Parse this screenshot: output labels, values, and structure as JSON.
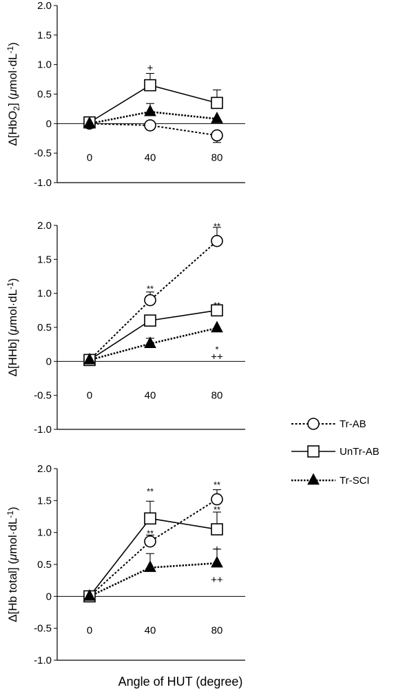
{
  "x_axis_label": "Angle of HUT (degree)",
  "legend": [
    {
      "label": "Tr-AB",
      "marker": "open-circle",
      "line": "dotted"
    },
    {
      "label": "UnTr-AB",
      "marker": "open-square",
      "line": "solid"
    },
    {
      "label": "Tr-SCI",
      "marker": "filled-triangle",
      "line": "dotted"
    }
  ],
  "colors": {
    "ink": "#000000",
    "open_fill": "#ffffff"
  },
  "chart_data": [
    {
      "type": "line",
      "ylabel_pre": "Δ[HbO",
      "ylabel_sub": "2",
      "ylabel_mid": "] (",
      "ylabel_mu": "μ",
      "ylabel_post": "mol·dL",
      "ylabel_sup": "-1",
      "ylabel_end": ")",
      "ylim": [
        -1.0,
        2.0
      ],
      "yticks": [
        "2.0",
        "1.5",
        "1.0",
        "0.5",
        "0",
        "-0.5",
        "-1.0"
      ],
      "x": [
        0,
        40,
        80
      ],
      "xticks": [
        "0",
        "40",
        "80"
      ],
      "series": [
        {
          "name": "Tr-AB",
          "values": [
            0.0,
            -0.03,
            -0.2
          ],
          "err": [
            0.0,
            0.0,
            0.12
          ]
        },
        {
          "name": "UnTr-AB",
          "values": [
            0.02,
            0.65,
            0.35
          ],
          "err": [
            0.0,
            0.2,
            0.22
          ]
        },
        {
          "name": "Tr-SCI",
          "values": [
            0.0,
            0.2,
            0.08
          ],
          "err": [
            0.0,
            0.14,
            0.0
          ]
        }
      ],
      "annotations": [
        {
          "text": "+",
          "x": 40,
          "y": 0.93
        }
      ]
    },
    {
      "type": "line",
      "ylabel_pre": "Δ[HHb] (",
      "ylabel_mu": "μ",
      "ylabel_post": "mol·dL",
      "ylabel_sup": "-1",
      "ylabel_end": ")",
      "ylim": [
        -1.0,
        2.0
      ],
      "yticks": [
        "2.0",
        "1.5",
        "1.0",
        "0.5",
        "0",
        "-0.5",
        "-1.0"
      ],
      "x": [
        0,
        40,
        80
      ],
      "xticks": [
        "0",
        "40",
        "80"
      ],
      "series": [
        {
          "name": "Tr-AB",
          "values": [
            0.02,
            0.9,
            1.77
          ],
          "err": [
            0.0,
            0.12,
            0.2
          ]
        },
        {
          "name": "UnTr-AB",
          "values": [
            0.02,
            0.6,
            0.75
          ],
          "err": [
            0.0,
            0.0,
            0.0
          ]
        },
        {
          "name": "Tr-SCI",
          "values": [
            0.02,
            0.26,
            0.49
          ],
          "err": [
            0.0,
            0.08,
            0.0
          ]
        }
      ],
      "annotations": [
        {
          "text": "**",
          "x": 40,
          "y": 1.06
        },
        {
          "text": "**",
          "x": 80,
          "y": 1.98
        },
        {
          "text": "**",
          "x": 80,
          "y": 0.82
        },
        {
          "text": "*",
          "x": 80,
          "y": 0.17
        },
        {
          "text": "++",
          "x": 80,
          "y": 0.06
        }
      ]
    },
    {
      "type": "line",
      "ylabel_pre": "Δ[Hb total] (",
      "ylabel_mu": "μ",
      "ylabel_post": "mol·dL",
      "ylabel_sup": "-1",
      "ylabel_end": ")",
      "ylim": [
        -1.0,
        2.0
      ],
      "yticks": [
        "2.0",
        "1.5",
        "1.0",
        "0.5",
        "0",
        "-0.5",
        "-1.0"
      ],
      "x": [
        0,
        40,
        80
      ],
      "xticks": [
        "0",
        "40",
        "80"
      ],
      "series": [
        {
          "name": "Tr-AB",
          "values": [
            0.0,
            0.86,
            1.52
          ],
          "err": [
            0.0,
            0.1,
            0.15
          ]
        },
        {
          "name": "UnTr-AB",
          "values": [
            0.0,
            1.22,
            1.05
          ],
          "err": [
            0.0,
            0.27,
            0.27
          ]
        },
        {
          "name": "Tr-SCI",
          "values": [
            0.0,
            0.45,
            0.52
          ],
          "err": [
            0.0,
            0.22,
            0.22
          ]
        }
      ],
      "annotations": [
        {
          "text": "**",
          "x": 40,
          "y": 1.64
        },
        {
          "text": "**",
          "x": 40,
          "y": 0.98
        },
        {
          "text": "**",
          "x": 80,
          "y": 1.74
        },
        {
          "text": "**",
          "x": 80,
          "y": 1.35
        },
        {
          "text": "+",
          "x": 80,
          "y": 0.73
        },
        {
          "text": "++",
          "x": 80,
          "y": 0.25
        }
      ]
    }
  ]
}
